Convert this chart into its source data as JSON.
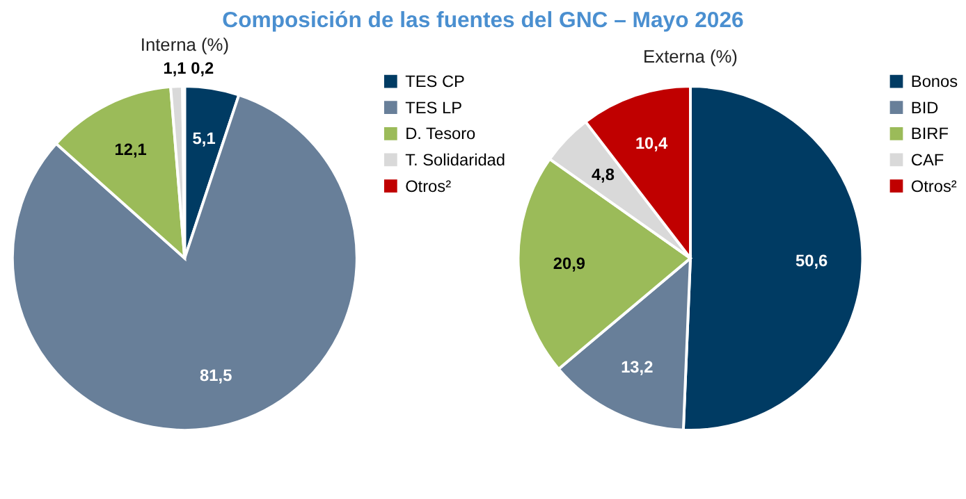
{
  "chart_data": [
    {
      "type": "pie",
      "title": "Composición de las fuentes del GNC – Mayo 2026",
      "subtitle": "Interna (%)",
      "categories": [
        "TES CP",
        "TES LP",
        "D. Tesoro",
        "T. Solidaridad",
        "Otros²"
      ],
      "values": [
        5.1,
        81.5,
        12.1,
        1.1,
        0.2
      ],
      "colors": [
        "#003b63",
        "#687f99",
        "#9bbb59",
        "#d9d9d9",
        "#c00000"
      ],
      "value_labels": [
        "5,1",
        "81,5",
        "12,1",
        "1,1",
        "0,2"
      ],
      "legend": "right"
    },
    {
      "type": "pie",
      "subtitle": "Externa (%)",
      "categories": [
        "Bonos",
        "BID",
        "BIRF",
        "CAF",
        "Otros²"
      ],
      "values": [
        50.6,
        13.2,
        20.9,
        4.8,
        10.4
      ],
      "colors": [
        "#003b63",
        "#687f99",
        "#9bbb59",
        "#d9d9d9",
        "#c00000"
      ],
      "value_labels": [
        "50,6",
        "13,2",
        "20,9",
        "4,8",
        "10,4"
      ],
      "legend": "right"
    }
  ]
}
